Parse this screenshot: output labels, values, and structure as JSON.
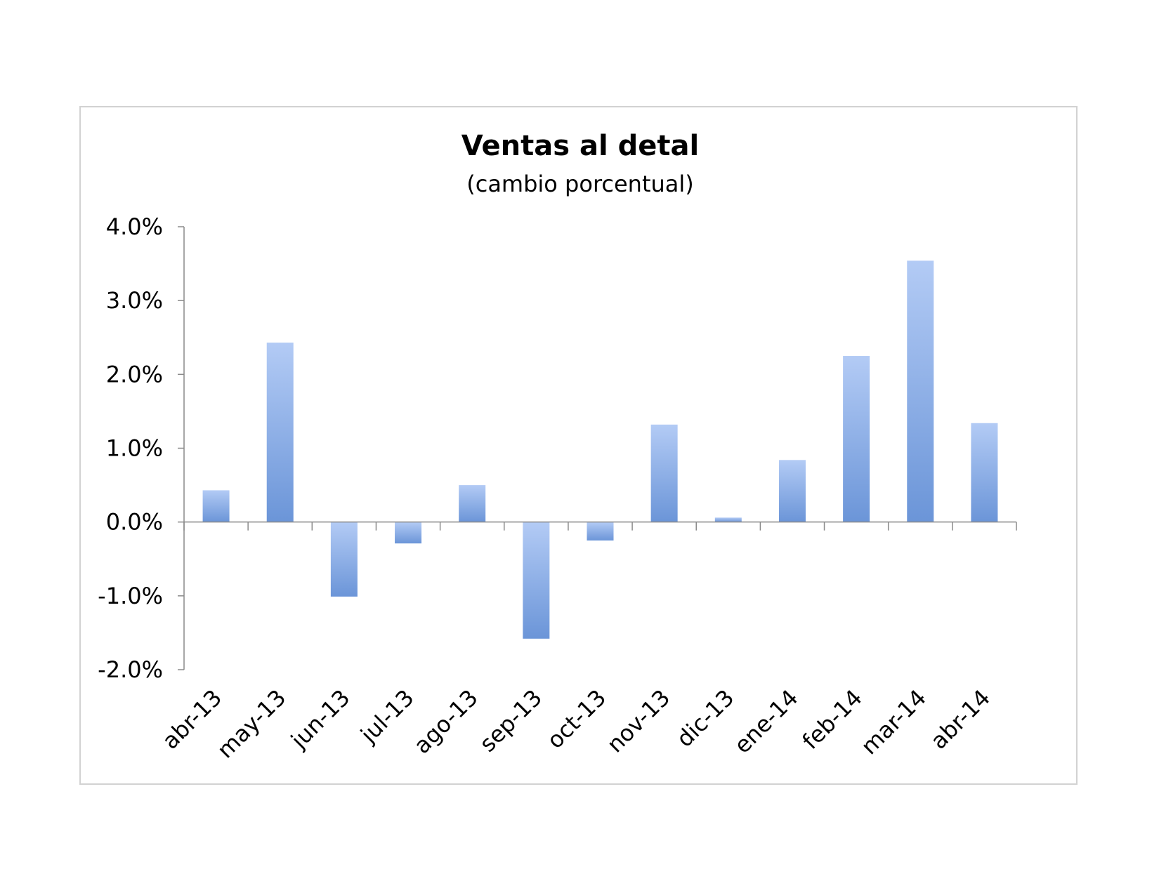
{
  "chart_data": {
    "type": "bar",
    "title": "Ventas al detal",
    "subtitle": "(cambio porcentual)",
    "xlabel": "",
    "ylabel": "",
    "categories": [
      "abr-13",
      "may-13",
      "jun-13",
      "jul-13",
      "ago-13",
      "sep-13",
      "oct-13",
      "nov-13",
      "dic-13",
      "ene-14",
      "feb-14",
      "mar-14",
      "abr-14"
    ],
    "values": [
      0.43,
      2.43,
      -1.01,
      -0.29,
      0.5,
      -1.58,
      -0.25,
      1.32,
      0.06,
      0.84,
      2.25,
      3.54,
      1.34
    ],
    "ylim": [
      -2.0,
      4.0
    ],
    "yticks": [
      "4.0%",
      "3.0%",
      "2.0%",
      "1.0%",
      "0.0%",
      "-1.0%",
      "-2.0%"
    ],
    "ytick_values": [
      4,
      3,
      2,
      1,
      0,
      -1,
      -2
    ],
    "grid": false,
    "legend": "none",
    "colors": {
      "bar_light": "#b3cbf5",
      "bar_dark": "#6b95d8",
      "axis": "#8a8a8a"
    }
  }
}
